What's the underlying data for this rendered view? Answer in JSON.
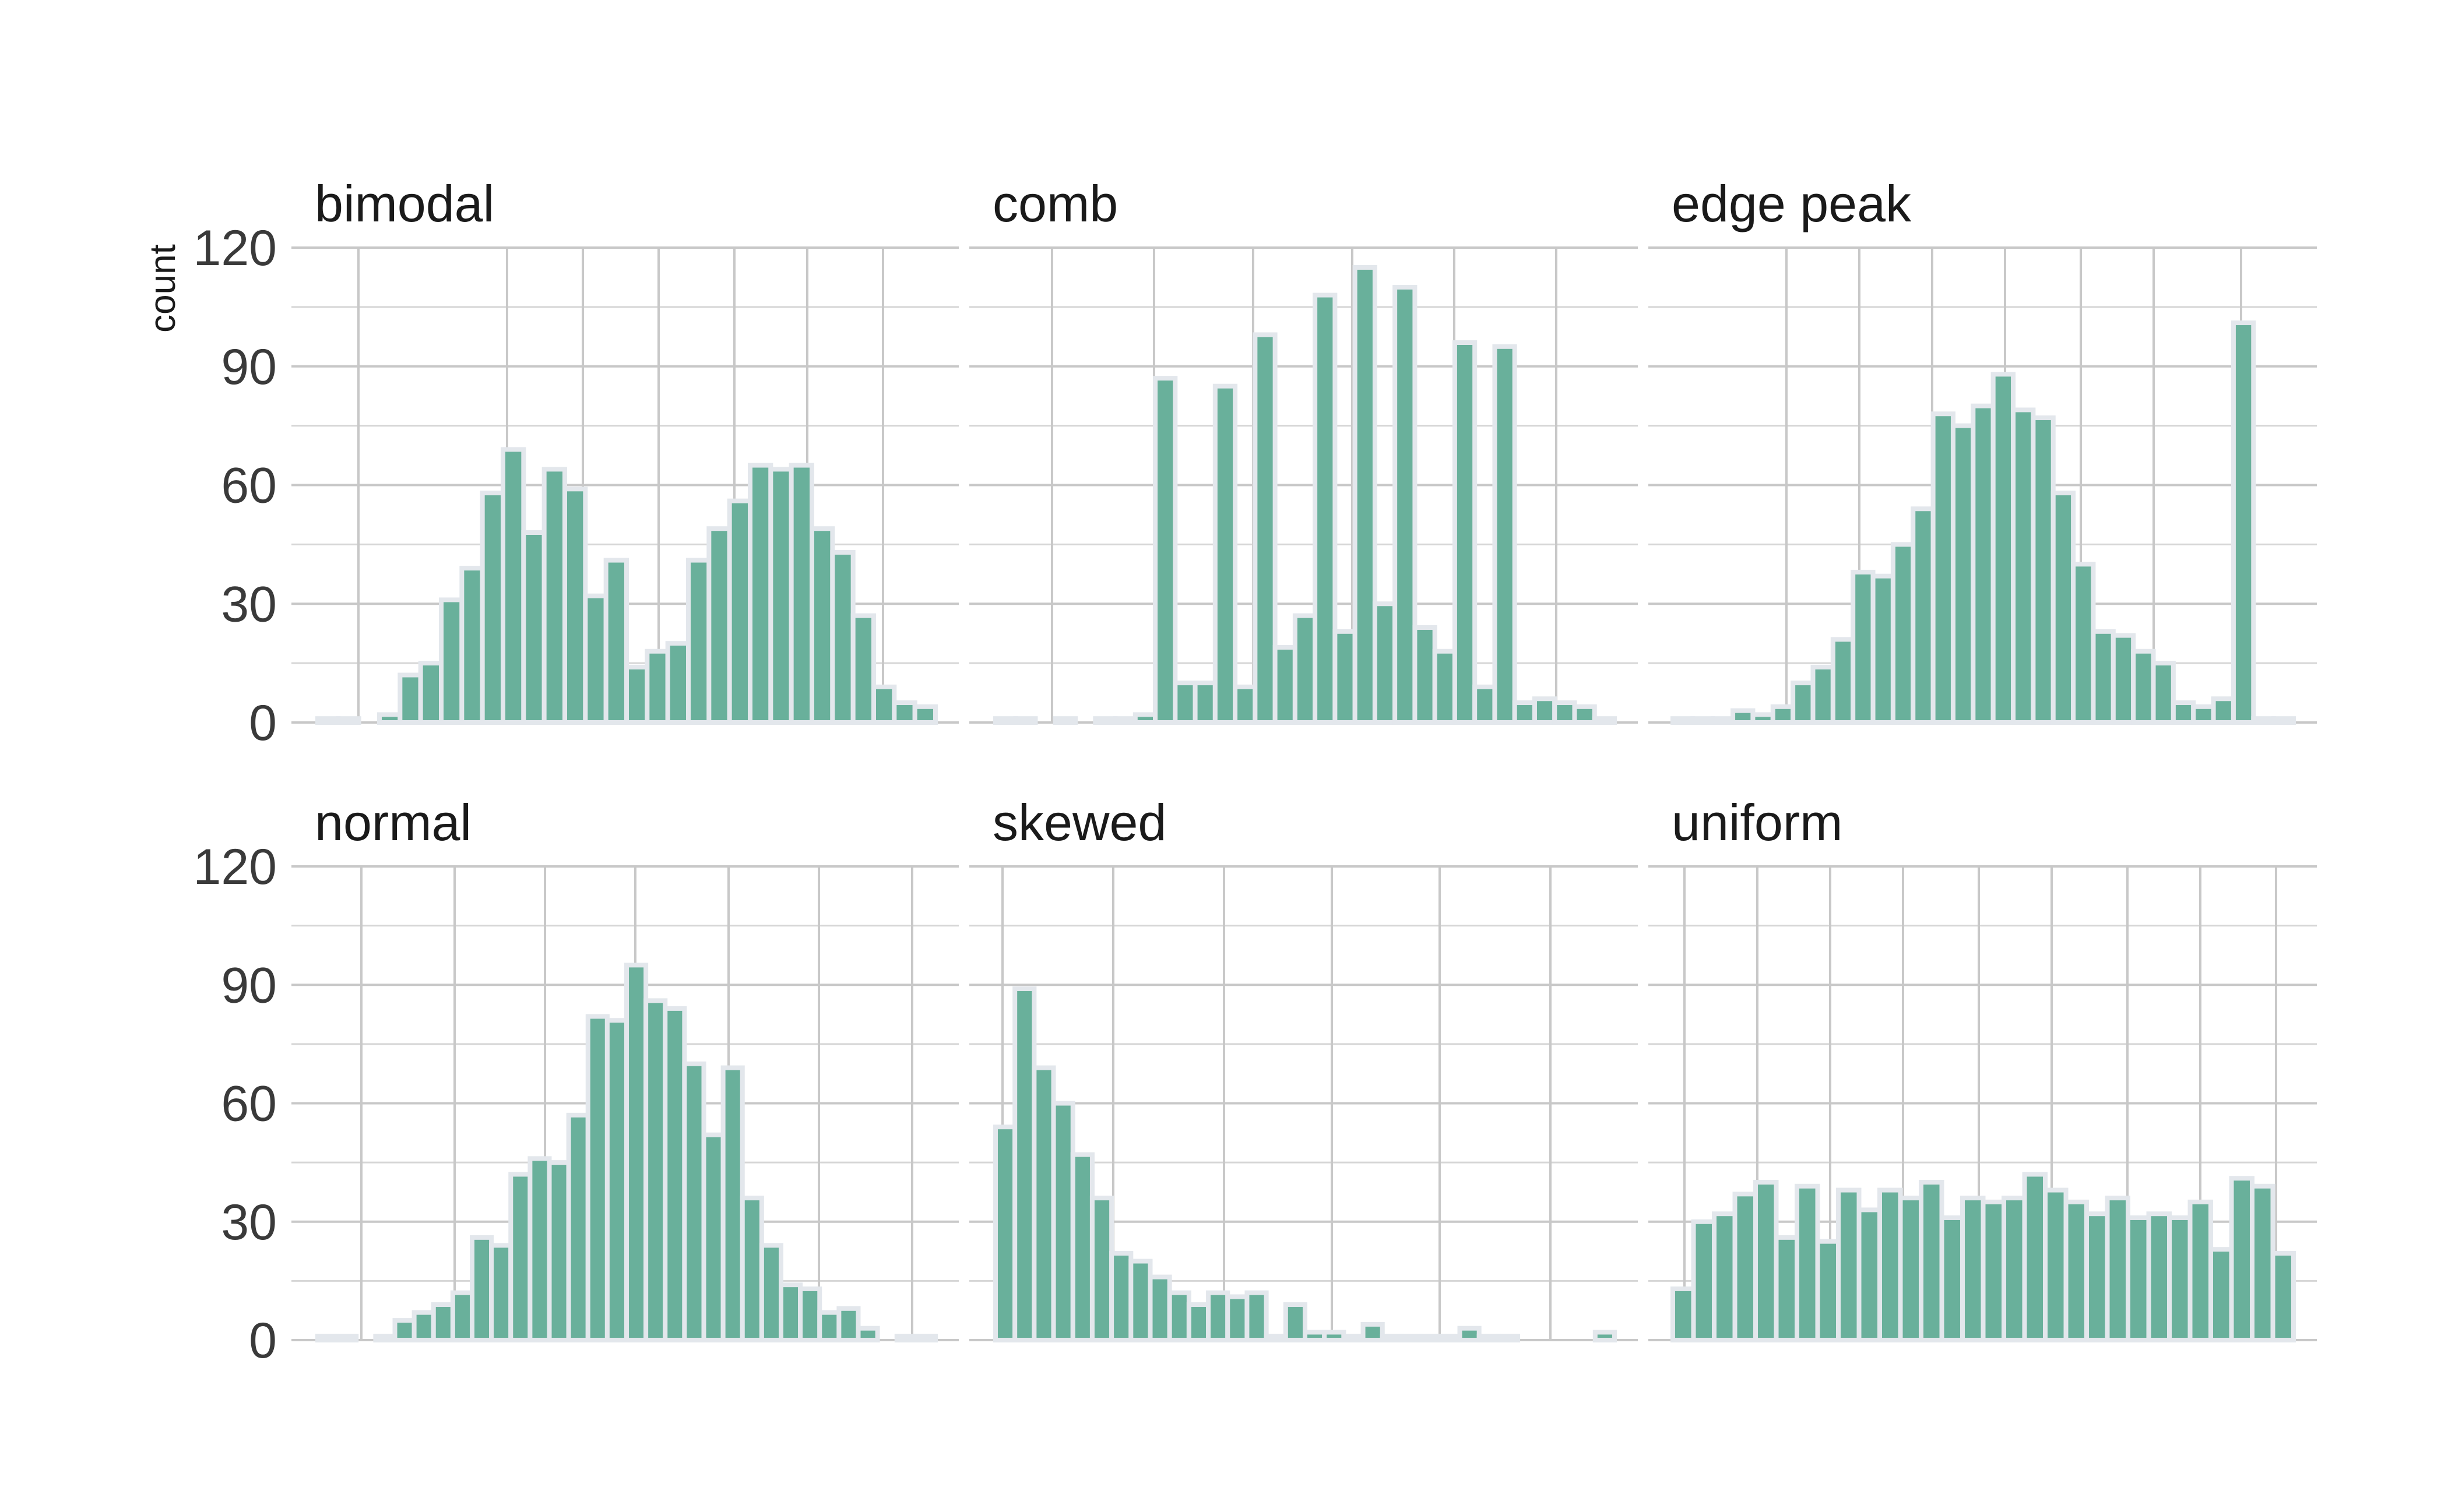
{
  "chart_data": {
    "type": "bar",
    "ylabel": "count",
    "ylim": [
      0,
      120
    ],
    "yticks": [
      "0",
      "30",
      "60",
      "90",
      "120"
    ],
    "colors": {
      "bar_fill": "#69b09b",
      "bar_edge": "#e3e7ec",
      "grid": "#c8c8c8"
    },
    "grid": true,
    "panels": [
      {
        "title": "bimodal",
        "values": [
          1,
          1,
          0,
          2,
          12,
          15,
          31,
          39,
          58,
          69,
          48,
          64,
          59,
          32,
          41,
          14,
          18,
          20,
          41,
          49,
          56,
          65,
          64,
          65,
          49,
          43,
          27,
          9,
          5,
          4
        ]
      },
      {
        "title": "comb",
        "values": [
          1,
          1,
          0,
          1,
          0,
          1,
          1,
          2,
          87,
          10,
          10,
          85,
          9,
          98,
          19,
          27,
          108,
          23,
          115,
          30,
          110,
          24,
          18,
          96,
          9,
          95,
          5,
          6,
          5,
          4,
          1
        ]
      },
      {
        "title": "edge peak",
        "values": [
          1,
          1,
          1,
          3,
          2,
          4,
          10,
          14,
          21,
          38,
          37,
          45,
          54,
          78,
          75,
          80,
          88,
          79,
          77,
          58,
          40,
          23,
          22,
          18,
          15,
          5,
          4,
          6,
          101,
          1,
          1
        ]
      },
      {
        "title": "normal",
        "values": [
          1,
          1,
          0,
          1,
          5,
          7,
          9,
          12,
          26,
          24,
          42,
          46,
          45,
          57,
          82,
          81,
          95,
          86,
          84,
          70,
          52,
          69,
          36,
          24,
          14,
          13,
          7,
          8,
          3,
          0,
          1,
          1
        ]
      },
      {
        "title": "skewed",
        "values": [
          54,
          89,
          69,
          60,
          47,
          36,
          22,
          20,
          16,
          12,
          9,
          12,
          11,
          12,
          1,
          9,
          2,
          2,
          1,
          4,
          1,
          1,
          1,
          1,
          3,
          1,
          1,
          0,
          0,
          0,
          0,
          2
        ]
      },
      {
        "title": "uniform",
        "values": [
          13,
          30,
          32,
          37,
          40,
          26,
          39,
          25,
          38,
          33,
          38,
          36,
          40,
          31,
          36,
          35,
          36,
          42,
          38,
          35,
          32,
          36,
          31,
          32,
          31,
          35,
          23,
          41,
          39,
          22
        ]
      }
    ]
  }
}
